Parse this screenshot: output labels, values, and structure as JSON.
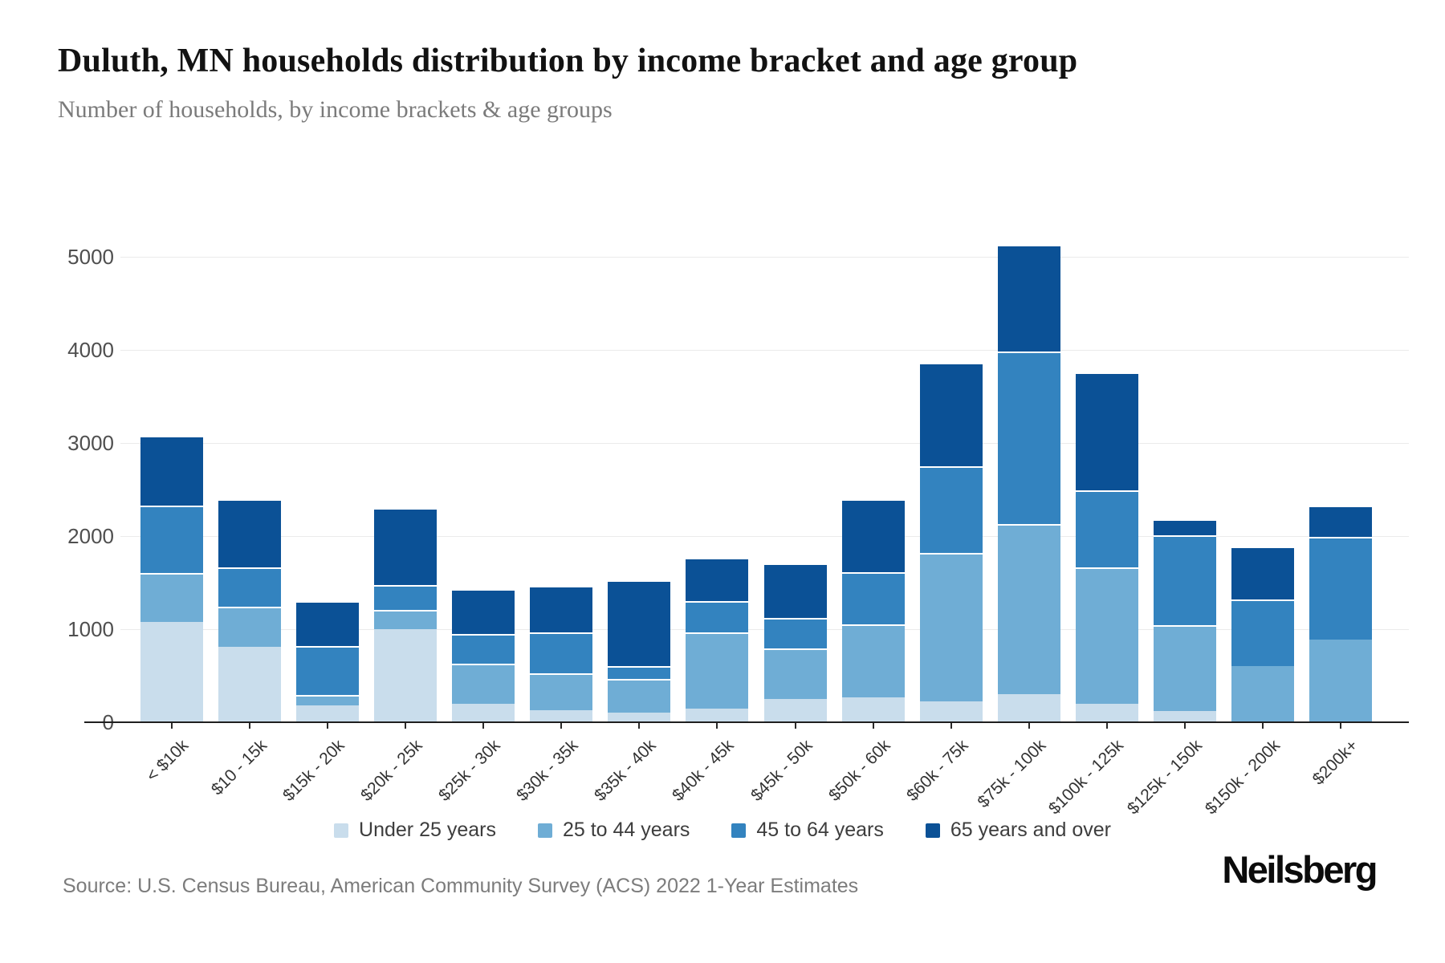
{
  "header": {
    "title": "Duluth, MN households distribution by income bracket and age group",
    "subtitle": "Number of households, by income brackets & age groups"
  },
  "footer": {
    "source": "Source: U.S. Census Bureau, American Community Survey (ACS) 2022 1-Year Estimates",
    "brand": "Neilsberg"
  },
  "chart_data": {
    "type": "bar",
    "stacked": true,
    "title": "Duluth, MN households distribution by income bracket and age group",
    "subtitle": "Number of households, by income brackets & age groups",
    "xlabel": "",
    "ylabel": "",
    "ylim": [
      0,
      5400
    ],
    "yticks": [
      0,
      1000,
      2000,
      3000,
      4000,
      5000
    ],
    "grid": "horizontal",
    "legend_position": "bottom",
    "categories": [
      "< $10k",
      "$10 - 15k",
      "$15k - 20k",
      "$20k - 25k",
      "$25k - 30k",
      "$30k - 35k",
      "$35k - 40k",
      "$40k - 45k",
      "$45k - 50k",
      "$50k - 60k",
      "$60k - 75k",
      "$75k - 100k",
      "$100k - 125k",
      "$125k - 150k",
      "$150k - 200k",
      "$200k+"
    ],
    "series": [
      {
        "name": "Under 25 years",
        "color": "#c9ddec",
        "values": [
          1080,
          810,
          180,
          1000,
          200,
          130,
          100,
          150,
          250,
          270,
          220,
          300,
          200,
          120,
          0,
          0
        ]
      },
      {
        "name": "25 to 44 years",
        "color": "#6fadd5",
        "values": [
          520,
          430,
          110,
          210,
          430,
          400,
          370,
          820,
          540,
          780,
          1600,
          1830,
          1460,
          920,
          600,
          890
        ]
      },
      {
        "name": "45 to 64 years",
        "color": "#3383bf",
        "values": [
          730,
          420,
          530,
          260,
          320,
          440,
          130,
          330,
          330,
          560,
          930,
          1850,
          830,
          970,
          720,
          1100
        ]
      },
      {
        "name": "65 years and over",
        "color": "#0b5196",
        "values": [
          750,
          740,
          480,
          830,
          480,
          500,
          930,
          470,
          590,
          790,
          1110,
          1150,
          1270,
          170,
          570,
          340
        ]
      }
    ],
    "totals": [
      3080,
      2400,
      1300,
      2300,
      1430,
      1470,
      1530,
      1770,
      1710,
      2400,
      3860,
      5130,
      3760,
      2180,
      1890,
      2330
    ]
  }
}
